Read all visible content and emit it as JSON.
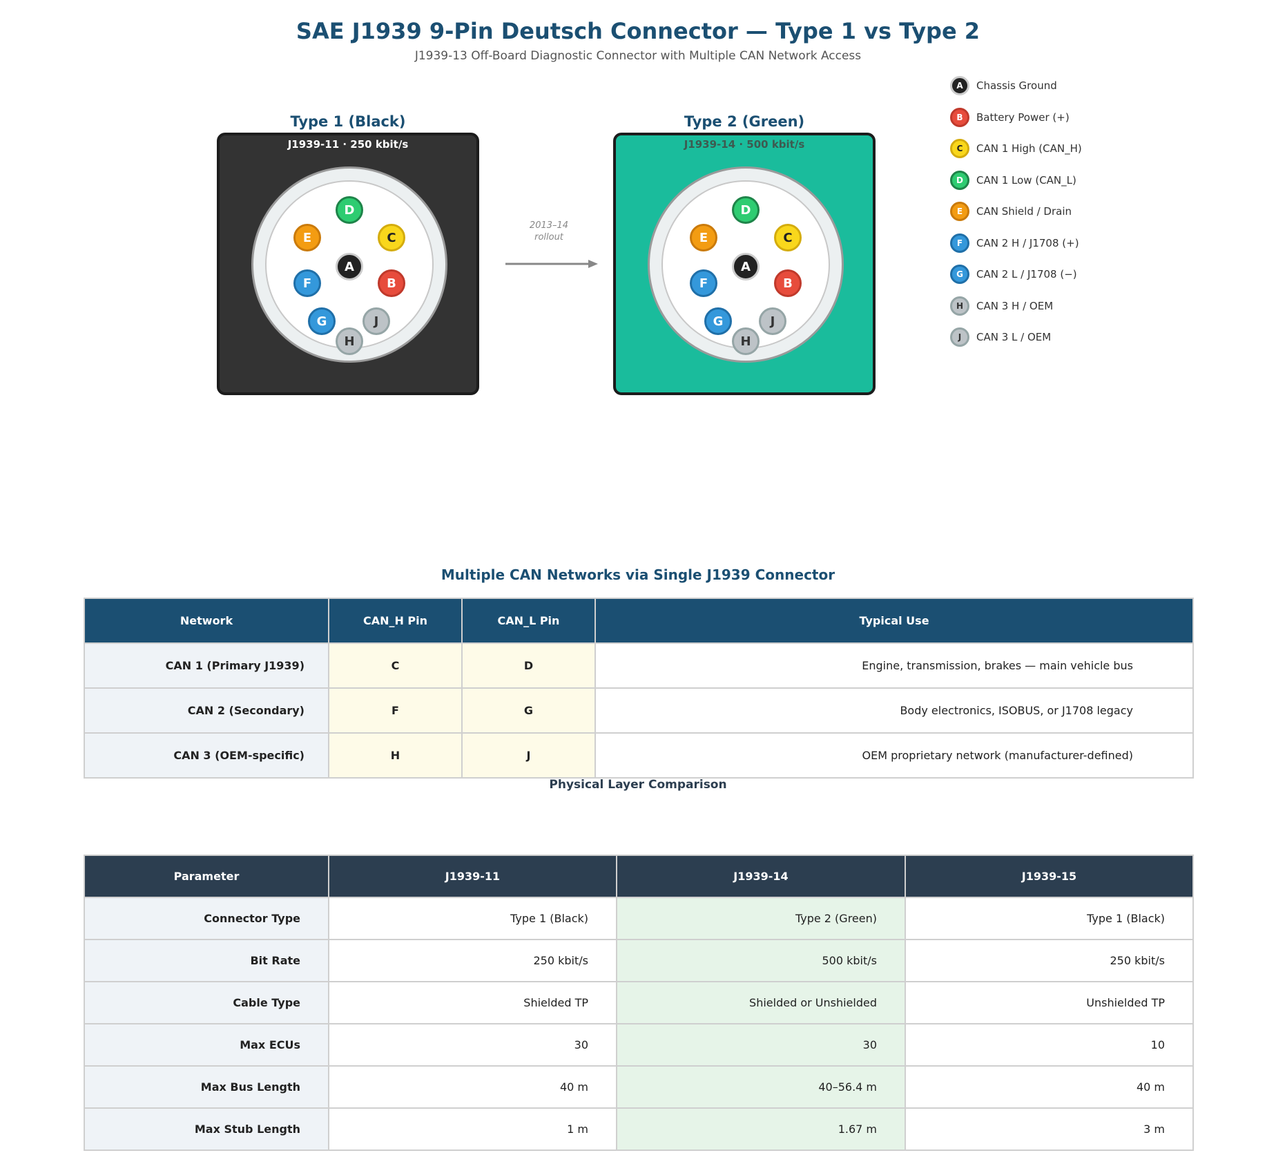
{
  "header": {
    "title": "SAE J1939 9-Pin Deutsch Connector — Type 1 vs Type 2",
    "subtitle": "J1939-13 Off-Board Diagnostic Connector with Multiple CAN Network Access"
  },
  "connectors": [
    {
      "title": "Type 1 (Black)",
      "subtitle": "J1939-11 · 250 kbit/s",
      "housing_color": "#333333",
      "subtitle_color": "#ffffff"
    },
    {
      "title": "Type 2 (Green)",
      "subtitle": "J1939-14 · 500 kbit/s",
      "housing_color": "#1abc9c",
      "subtitle_color": "#3d5a50"
    }
  ],
  "pins": [
    {
      "id": "A",
      "fill": "#222222",
      "stroke": "#cccccc",
      "text": "#ffffff"
    },
    {
      "id": "B",
      "fill": "#e74c3c",
      "stroke": "#c0392b",
      "text": "#ffffff"
    },
    {
      "id": "C",
      "fill": "#f9d71c",
      "stroke": "#d4ac0d",
      "text": "#222222"
    },
    {
      "id": "D",
      "fill": "#2ecc71",
      "stroke": "#1e8449",
      "text": "#ffffff"
    },
    {
      "id": "E",
      "fill": "#f39c12",
      "stroke": "#ca7a0a",
      "text": "#ffffff"
    },
    {
      "id": "F",
      "fill": "#3498db",
      "stroke": "#1f6fa8",
      "text": "#ffffff"
    },
    {
      "id": "G",
      "fill": "#3498db",
      "stroke": "#1f6fa8",
      "text": "#ffffff"
    },
    {
      "id": "H",
      "fill": "#bdc3c7",
      "stroke": "#95a5a6",
      "text": "#333333"
    },
    {
      "id": "J",
      "fill": "#bdc3c7",
      "stroke": "#95a5a6",
      "text": "#333333"
    }
  ],
  "rollout_label": {
    "line1": "2013–14",
    "line2": "rollout"
  },
  "legend": [
    {
      "pin": "A",
      "label": "Chassis Ground"
    },
    {
      "pin": "B",
      "label": "Battery Power (+)"
    },
    {
      "pin": "C",
      "label": "CAN 1 High (CAN_H)"
    },
    {
      "pin": "D",
      "label": "CAN 1 Low (CAN_L)"
    },
    {
      "pin": "E",
      "label": "CAN Shield / Drain"
    },
    {
      "pin": "F",
      "label": "CAN 2 H / J1708 (+)"
    },
    {
      "pin": "G",
      "label": "CAN 2 L / J1708 (−)"
    },
    {
      "pin": "H",
      "label": "CAN 3 H / OEM"
    },
    {
      "pin": "J",
      "label": "CAN 3 L / OEM"
    }
  ],
  "network_table": {
    "title": "Multiple CAN Networks via Single J1939 Connector",
    "headers": [
      "Network",
      "CAN_H Pin",
      "CAN_L Pin",
      "Typical Use"
    ],
    "rows": [
      [
        "CAN 1 (Primary J1939)",
        "C",
        "D",
        "Engine, transmission, brakes — main vehicle bus"
      ],
      [
        "CAN 2 (Secondary)",
        "F",
        "G",
        "Body electronics, ISOBUS, or J1708 legacy"
      ],
      [
        "CAN 3 (OEM-specific)",
        "H",
        "J",
        "OEM proprietary network (manufacturer-defined)"
      ]
    ]
  },
  "physical_table": {
    "title": "Physical Layer Comparison",
    "headers": [
      "Parameter",
      "J1939-11",
      "J1939-14",
      "J1939-15"
    ],
    "rows": [
      [
        "Connector Type",
        "Type 1 (Black)",
        "Type 2 (Green)",
        "Type 1 (Black)"
      ],
      [
        "Bit Rate",
        "250 kbit/s",
        "500 kbit/s",
        "250 kbit/s"
      ],
      [
        "Cable Type",
        "Shielded TP",
        "Shielded or Unshielded",
        "Unshielded TP"
      ],
      [
        "Max ECUs",
        "30",
        "30",
        "10"
      ],
      [
        "Max Bus Length",
        "40 m",
        "40–56.4 m",
        "40 m"
      ],
      [
        "Max Stub Length",
        "1 m",
        "1.67 m",
        "3 m"
      ]
    ]
  }
}
